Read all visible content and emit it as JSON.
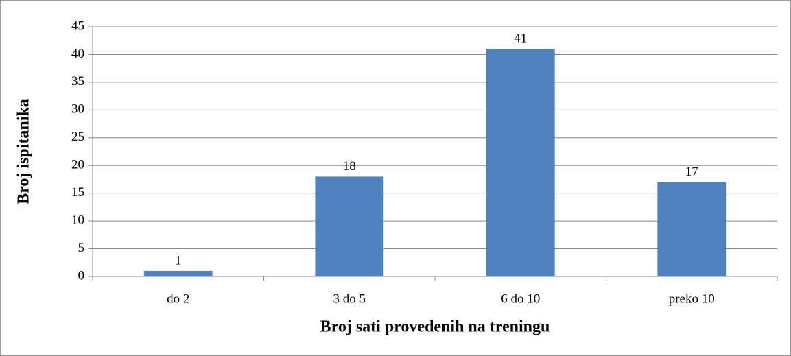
{
  "chart_data": {
    "type": "bar",
    "categories": [
      "do 2",
      "3 do 5",
      "6 do 10",
      "preko 10"
    ],
    "values": [
      1,
      18,
      41,
      17
    ],
    "color": "#4f81bd",
    "xlabel": "Broj sati provedenih na treningu",
    "ylabel": "Broj ispitanika",
    "ylim": [
      0,
      45
    ],
    "yticks": [
      0,
      5,
      10,
      15,
      20,
      25,
      30,
      35,
      40,
      45
    ],
    "grid": true
  }
}
